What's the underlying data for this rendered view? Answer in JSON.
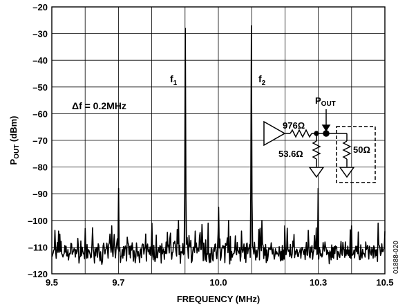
{
  "chart_data": {
    "type": "line",
    "xlabel": "FREQUENCY (MHz)",
    "ylabel": "P_OUT (dBm)",
    "ylabel_main": "P",
    "ylabel_sub": "OUT",
    "ylabel_unit": " (dBm)",
    "xlim": [
      9.5,
      10.5
    ],
    "ylim": [
      -120,
      -20
    ],
    "x_ticks": [
      9.5,
      9.7,
      10.0,
      10.3,
      10.5
    ],
    "x_tick_labels": [
      "9.5",
      "9.7",
      "10.0",
      "10.3",
      "10.5"
    ],
    "y_ticks": [
      -20,
      -30,
      -40,
      -50,
      -60,
      -70,
      -80,
      -90,
      -100,
      -110,
      -120
    ],
    "y_tick_labels": [
      "–20",
      "–30",
      "–40",
      "–50",
      "–60",
      "–70",
      "–80",
      "–90",
      "–100",
      "–110",
      "–120"
    ],
    "grid": true,
    "noise_floor_dbm": -112,
    "tones": [
      {
        "label": "f1",
        "label_main": "f",
        "label_sub": "1",
        "x": 9.9,
        "y": -28
      },
      {
        "label": "f2",
        "label_main": "f",
        "label_sub": "2",
        "x": 10.1,
        "y": -27
      }
    ],
    "spurs": [
      {
        "x": 9.52,
        "y": -104
      },
      {
        "x": 9.6,
        "y": -103
      },
      {
        "x": 9.68,
        "y": -102
      },
      {
        "x": 9.7,
        "y": -88
      },
      {
        "x": 9.8,
        "y": -101
      },
      {
        "x": 9.88,
        "y": -100
      },
      {
        "x": 9.93,
        "y": -104
      },
      {
        "x": 9.97,
        "y": -101
      },
      {
        "x": 10.0,
        "y": -95
      },
      {
        "x": 10.03,
        "y": -100
      },
      {
        "x": 10.07,
        "y": -104
      },
      {
        "x": 10.13,
        "y": -100
      },
      {
        "x": 10.2,
        "y": -102
      },
      {
        "x": 10.3,
        "y": -88
      },
      {
        "x": 10.4,
        "y": -102
      },
      {
        "x": 10.48,
        "y": -101
      }
    ],
    "annotations": {
      "delta_f": "Δf = 0.2MHz",
      "pout_main": "P",
      "pout_sub": "OUT",
      "r_series": "976Ω",
      "r_shunt": "53.6Ω",
      "r_load": "50Ω"
    },
    "figure_id": "01888-020"
  }
}
